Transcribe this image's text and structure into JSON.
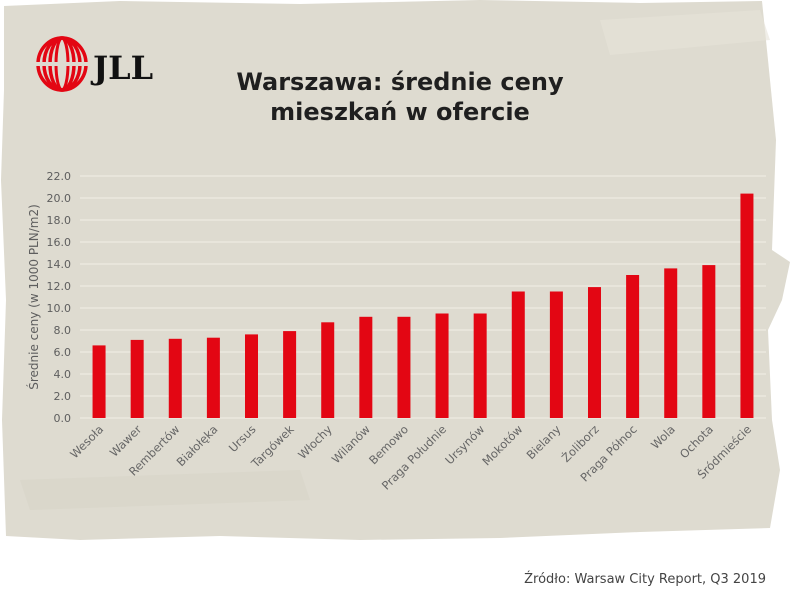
{
  "logo": {
    "text": "JLL",
    "color": "#e30613"
  },
  "source": "Źródło: Warsaw City Report, Q3 2019",
  "colors": {
    "bar": "#e30613",
    "background": "#dedbd0",
    "grid": "#f2efe6",
    "logo_red": "#e30613"
  },
  "chart_data": {
    "type": "bar",
    "title_lines": [
      "Warszawa: średnie ceny",
      "mieszkań w ofercie"
    ],
    "xlabel": "",
    "ylabel": "Średnie ceny (w 1000 PLN/m2)",
    "ylim": [
      0,
      22
    ],
    "ytick_labels": [
      "0.0",
      "2.0",
      "4.0",
      "6.0",
      "8.0",
      "10.0",
      "12.0",
      "14.0",
      "16.0",
      "18.0",
      "20.0",
      "22.0"
    ],
    "grid": true,
    "legend": "none",
    "categories": [
      "Wesoła",
      "Wawer",
      "Rembertów",
      "Białołęka",
      "Ursus",
      "Targówek",
      "Włochy",
      "Wilanów",
      "Bemowo",
      "Praga Południe",
      "Ursynów",
      "Mokotów",
      "Bielany",
      "Żoliborz",
      "Praga Północ",
      "Wola",
      "Ochota",
      "Śródmieście"
    ],
    "values": [
      6.6,
      7.1,
      7.2,
      7.3,
      7.6,
      7.9,
      8.7,
      9.2,
      9.2,
      9.5,
      9.5,
      11.5,
      11.5,
      11.9,
      13.0,
      13.6,
      13.9,
      20.4
    ]
  }
}
